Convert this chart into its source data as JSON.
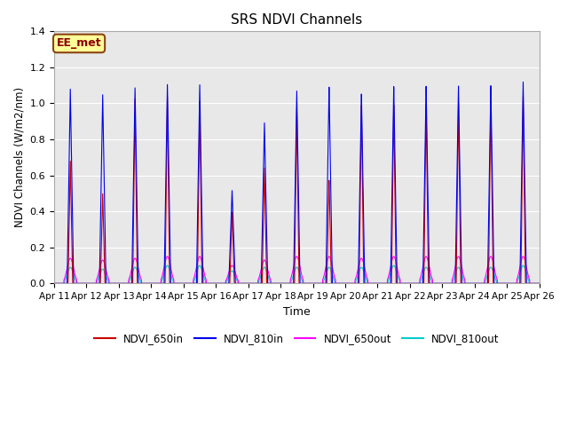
{
  "title": "SRS NDVI Channels",
  "xlabel": "Time",
  "ylabel": "NDVI Channels (W/m2/nm)",
  "ylim": [
    0,
    1.4
  ],
  "annotation": "EE_met",
  "xtick_labels": [
    "Apr 11",
    "Apr 12",
    "Apr 13",
    "Apr 14",
    "Apr 15",
    "Apr 16",
    "Apr 17",
    "Apr 18",
    "Apr 19",
    "Apr 20",
    "Apr 21",
    "Apr 22",
    "Apr 23",
    "Apr 24",
    "Apr 25",
    "Apr 26"
  ],
  "series": {
    "NDVI_650in": {
      "color": "#cc0000",
      "lw": 0.8
    },
    "NDVI_810in": {
      "color": "#0000ee",
      "lw": 0.8
    },
    "NDVI_650out": {
      "color": "#ff00ff",
      "lw": 0.8
    },
    "NDVI_810out": {
      "color": "#00cccc",
      "lw": 0.8
    }
  },
  "bg_color": "#e8e8e8",
  "grid_color": "#ffffff",
  "yticks": [
    0.0,
    0.2,
    0.4,
    0.6,
    0.8,
    1.0,
    1.2,
    1.4
  ],
  "annotation_box_color": "#ffff99",
  "annotation_border_color": "#8B4513",
  "peaks_810in": [
    1.08,
    1.05,
    1.09,
    1.11,
    1.11,
    0.52,
    0.9,
    1.08,
    1.1,
    1.06,
    1.1,
    1.1,
    1.1,
    1.1,
    1.12
  ],
  "peaks_650in": [
    0.68,
    0.5,
    1.03,
    1.05,
    1.02,
    0.4,
    0.65,
    0.98,
    0.58,
    1.0,
    1.0,
    1.0,
    1.0,
    1.04,
    1.04
  ],
  "peaks_650out": [
    0.14,
    0.13,
    0.14,
    0.15,
    0.15,
    0.1,
    0.13,
    0.15,
    0.15,
    0.14,
    0.15,
    0.15,
    0.15,
    0.15,
    0.15
  ],
  "peaks_810out": [
    0.09,
    0.08,
    0.09,
    0.1,
    0.1,
    0.07,
    0.09,
    0.09,
    0.09,
    0.09,
    0.1,
    0.09,
    0.09,
    0.09,
    0.1
  ],
  "days": 15,
  "pts_per_day": 480
}
